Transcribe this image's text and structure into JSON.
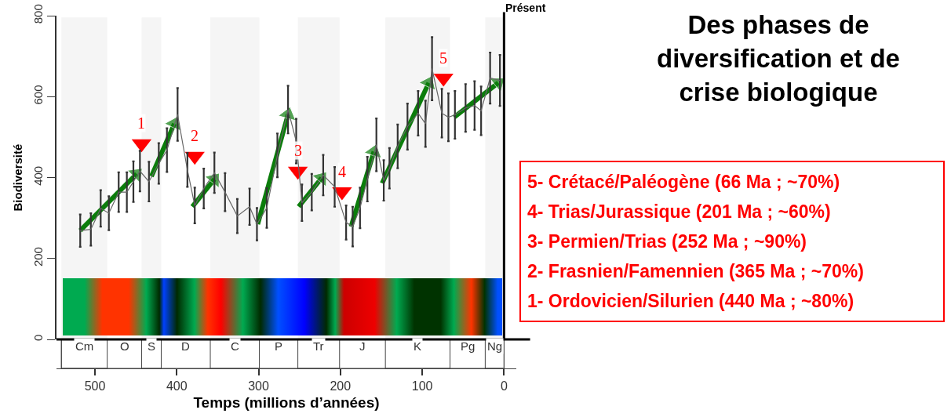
{
  "chart_data": {
    "type": "line",
    "title": "Des phases de diversification et de crise biologique",
    "xlabel": "Temps (millions d’années)",
    "ylabel": "Biodiversité",
    "xlim": [
      547,
      -15
    ],
    "xticks": [
      500,
      400,
      300,
      200,
      100,
      0
    ],
    "ylim": [
      0,
      800
    ],
    "yticks": [
      0,
      200,
      400,
      600,
      800
    ],
    "annotations": [
      "O",
      "D",
      "P",
      "J",
      "Pg",
      "5- Crétacé/Paléogène (66 Ma ; ~70%)",
      "4- Trias/Jurassique (201 Ma ; ~60%)",
      "3- Permien/Trias (252 Ma ; ~90%)",
      "2- Frasnien/Famennien (365 Ma ; ~70%)",
      "1- Ordovicien/Silurien (440 Ma ; ~80%)",
      {
        "text": "1",
        "x": 443,
        "y": 484
      },
      {
        "text": "2",
        "x": 378,
        "y": 453
      },
      {
        "text": "3",
        "x": 252,
        "y": 416
      },
      {
        "text": "4",
        "x": 198,
        "y": 365
      },
      {
        "text": "5",
        "x": 74,
        "y": 646
      }
    ],
    "ref_lines": [
      {
        "axis": "x",
        "value": 0,
        "label": "Présent",
        "color": "#000000"
      }
    ],
    "bands": [
      {
        "axis": "x",
        "from": 541,
        "to": 485,
        "label": "Cm",
        "color": "#f5f5f5"
      },
      {
        "axis": "x",
        "from": 443,
        "to": 419,
        "label": "S",
        "color": "#f5f5f5"
      },
      {
        "axis": "x",
        "from": 359,
        "to": 299,
        "label": "C",
        "color": "#f5f5f5"
      },
      {
        "axis": "x",
        "from": 252,
        "to": 201,
        "label": "Tr",
        "color": "#f5f5f5"
      },
      {
        "axis": "x",
        "from": 145,
        "to": 66,
        "label": "K",
        "color": "#f5f5f5"
      },
      {
        "axis": "x",
        "from": 23,
        "to": 0,
        "label": "Ng",
        "color": "#f5f5f5"
      }
    ],
    "series": [
      {
        "type": "line",
        "color": "#666666",
        "marker": "none",
        "x": [
          518,
          505,
          493,
          483,
          471,
          461,
          453,
          445,
          434,
          422,
          412,
          399,
          387,
          378,
          367,
          354,
          341,
          326,
          311,
          302,
          290,
          277,
          264,
          254,
          247,
          235,
          221,
          207,
          193,
          185,
          176,
          167,
          156,
          147,
          140,
          130,
          118,
          105,
          96,
          88,
          76,
          68,
          60,
          47,
          36,
          28,
          17,
          5
        ],
        "values": [
          269,
          272,
          324,
          312,
          364,
          364,
          390,
          416,
          390,
          435,
          468,
          556,
          419,
          331,
          373,
          412,
          364,
          305,
          328,
          285,
          325,
          455,
          568,
          490,
          338,
          364,
          406,
          377,
          289,
          279,
          325,
          396,
          481,
          393,
          423,
          477,
          526,
          559,
          533,
          669,
          559,
          549,
          555,
          572,
          578,
          565,
          646,
          640
        ],
        "errors": [
          40,
          40,
          45,
          42,
          49,
          49,
          50,
          50,
          49,
          50,
          54,
          65,
          42,
          44,
          49,
          50,
          47,
          42,
          45,
          40,
          49,
          54,
          59,
          55,
          45,
          45,
          50,
          49,
          42,
          49,
          50,
          55,
          65,
          50,
          50,
          54,
          57,
          55,
          57,
          78,
          60,
          59,
          59,
          59,
          60,
          60,
          63,
          63
        ]
      },
      {
        "type": "scatter",
        "color": "#ff0000",
        "marker": "triangle",
        "x": [
          443,
          378,
          252,
          198,
          74
        ],
        "values": [
          484,
          453,
          416,
          365,
          646
        ]
      },
      {
        "type": "line",
        "color": "#0b7d0b",
        "marker": "triangle",
        "x": [
          518,
          449
        ],
        "values": [
          269,
          409
        ]
      },
      {
        "type": "line",
        "color": "#0b7d0b",
        "marker": "triangle",
        "x": [
          431,
          403
        ],
        "values": [
          403,
          533
        ]
      },
      {
        "type": "line",
        "color": "#0b7d0b",
        "marker": "triangle",
        "x": [
          381,
          354
        ],
        "values": [
          328,
          396
        ]
      },
      {
        "type": "line",
        "color": "#0b7d0b",
        "marker": "triangle",
        "x": [
          301,
          264
        ],
        "values": [
          285,
          556
        ]
      },
      {
        "type": "line",
        "color": "#0b7d0b",
        "marker": "triangle",
        "x": [
          251,
          223
        ],
        "values": [
          328,
          399
        ]
      },
      {
        "type": "line",
        "color": "#0b7d0b",
        "marker": "triangle",
        "x": [
          187,
          159
        ],
        "values": [
          279,
          464
        ]
      },
      {
        "type": "line",
        "color": "#0b7d0b",
        "marker": "triangle",
        "x": [
          149,
          92
        ],
        "values": [
          386,
          634
        ]
      },
      {
        "type": "line",
        "color": "#0b7d0b",
        "marker": "triangle",
        "x": [
          61,
          7
        ],
        "values": [
          549,
          634
        ]
      }
    ]
  }
}
